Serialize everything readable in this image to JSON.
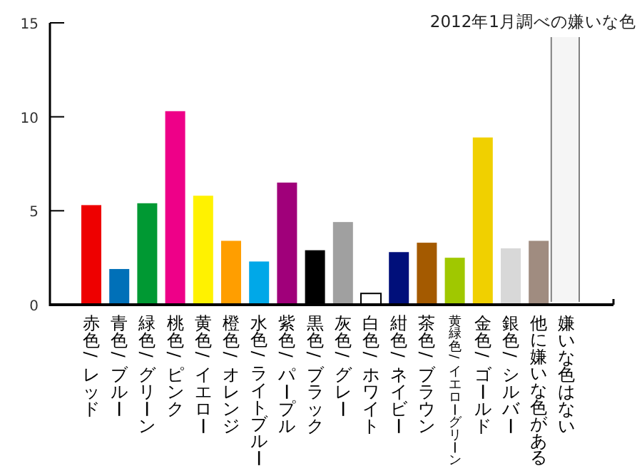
{
  "chart_data": {
    "type": "bar",
    "title": "2012年1月調べの嫌いな色",
    "categories": [
      "赤色/レッド",
      "青色/ブルー",
      "緑色/グリーン",
      "桃色/ピンク",
      "黄色/イエロー",
      "橙色/オレンジ",
      "水色/ライトブルー",
      "紫色/パープル",
      "黒色/ブラック",
      "灰色/グレー",
      "白色/ホワイト",
      "紺色/ネイビー",
      "茶色/ブラウン",
      "黄緑色/イエローグリーン",
      "金色/ゴールド",
      "銀色/シルバー",
      "他に嫌いな色がある",
      "嫌いな色はない"
    ],
    "values": [
      5.3,
      1.9,
      5.4,
      10.3,
      5.8,
      3.4,
      2.3,
      6.5,
      2.9,
      4.4,
      0.6,
      2.8,
      3.3,
      2.5,
      8.9,
      3.0,
      3.4,
      null
    ],
    "colors": [
      "#ee0000",
      "#0070b8",
      "#009933",
      "#ee0088",
      "#fff200",
      "#ff9e00",
      "#00a8e8",
      "#a0007a",
      "#000000",
      "#a0a0a0",
      "#ffffff",
      "#000f7a",
      "#a45a00",
      "#a0c800",
      "#f0d000",
      "#d8d8d8",
      "#a08c80",
      null
    ],
    "ylim": [
      0,
      15
    ],
    "yticks": [
      0,
      5,
      10,
      15
    ],
    "grid": false,
    "bands": [
      {
        "axis": "x",
        "from": "嫌いな色はない",
        "to": "嫌いな色はない",
        "color": "#808080"
      }
    ]
  }
}
